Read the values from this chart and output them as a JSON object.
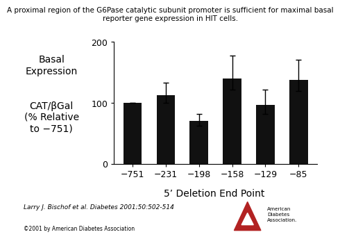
{
  "categories": [
    "−751",
    "−231",
    "−198",
    "−158",
    "−129",
    "−85"
  ],
  "values": [
    100,
    113,
    70,
    140,
    97,
    138
  ],
  "errors_upper": [
    0,
    20,
    12,
    37,
    25,
    33
  ],
  "errors_lower": [
    0,
    13,
    8,
    18,
    15,
    18
  ],
  "bar_color": "#111111",
  "title": "A proximal region of the G6Pase catalytic subunit promoter is sufficient for maximal basal\nreporter gene expression in HIT cells.",
  "ylabel_line1": "Basal",
  "ylabel_line2": "Expression",
  "ylabel_line4": "CAT/βGal",
  "ylabel_line5": "(% Relative",
  "ylabel_line6": "to −751)",
  "xlabel": "5’ Deletion End Point",
  "ylim": [
    0,
    200
  ],
  "yticks": [
    0,
    100,
    200
  ],
  "bar_width": 0.55,
  "citation": "Larry J. Bischof et al. Diabetes 2001;50:502-514",
  "copyright": "©2001 by American Diabetes Association",
  "background_color": "#ffffff",
  "title_fontsize": 7.5,
  "tick_fontsize": 9,
  "xlabel_fontsize": 10,
  "ylabel_fontsize": 10,
  "citation_fontsize": 6.5
}
